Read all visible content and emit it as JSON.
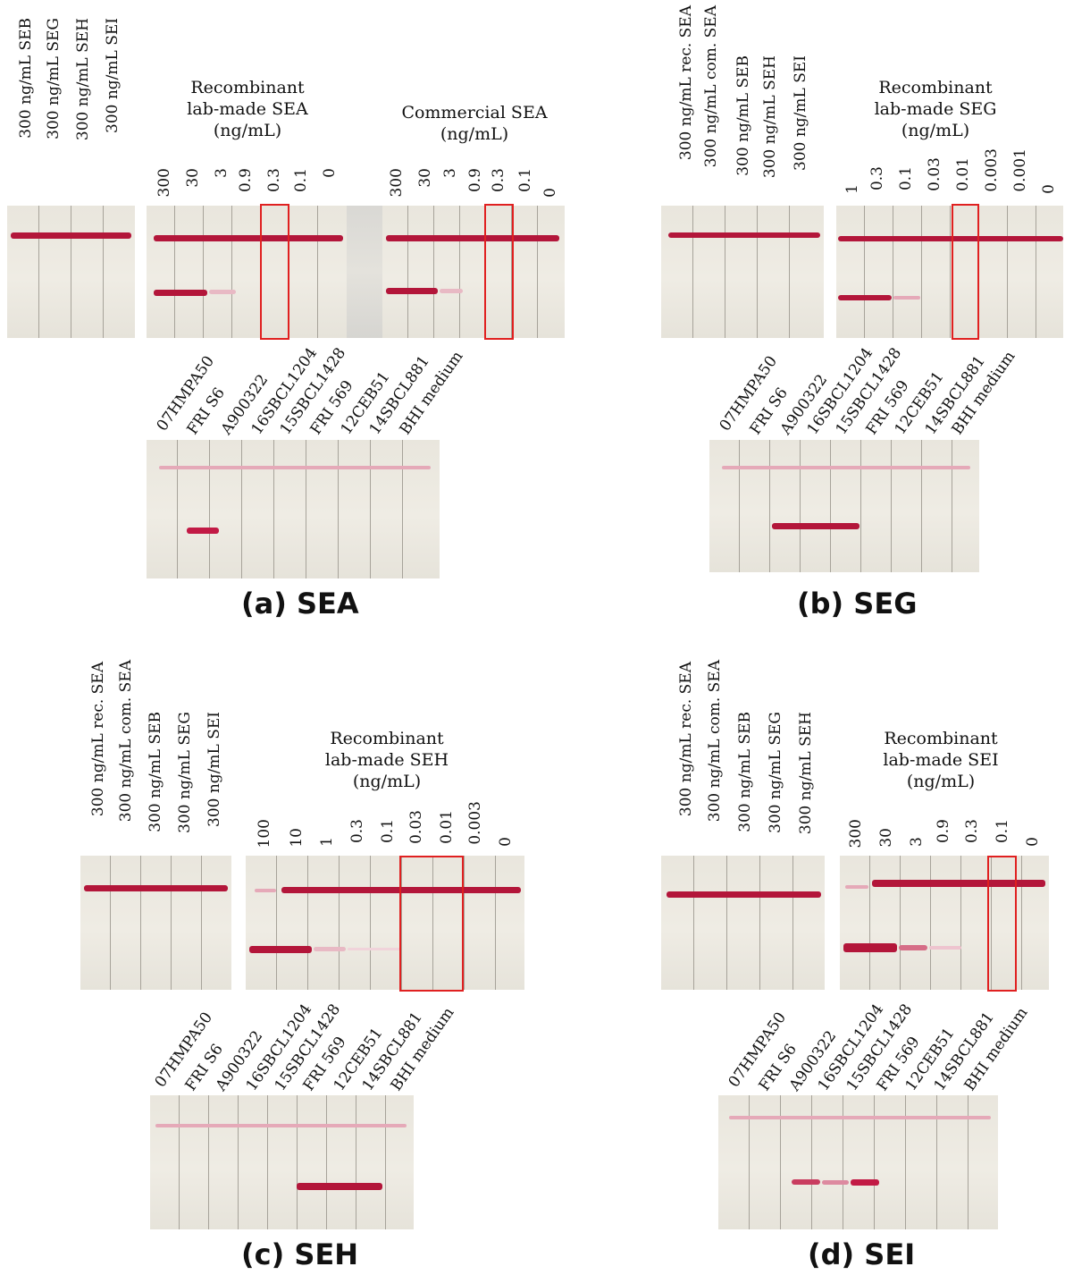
{
  "panels": {
    "a": {
      "caption": "(a) SEA",
      "cross_labels": [
        "300 ng/mL SEB",
        "300 ng/mL SEG",
        "300 ng/mL SEH",
        "300 ng/mL SEI"
      ],
      "rec_title": "Recombinant\nlab-made SEA\n(ng/mL)",
      "rec_conc": [
        "300",
        "30",
        "3",
        "0.9",
        "0.3",
        "0.1",
        "0"
      ],
      "com_title": "Commercial SEA\n(ng/mL)",
      "com_conc": [
        "300",
        "30",
        "3",
        "0.9",
        "0.3",
        "0.1",
        "0"
      ],
      "strains": [
        "07HMPA50",
        "FRI S6",
        "A900322",
        "16SBCL1204",
        "15SBCL1428",
        "FRI 569",
        "12CEB51",
        "14SBCL881",
        "BHI medium"
      ]
    },
    "b": {
      "caption": "(b) SEG",
      "cross_labels": [
        "300 ng/mL rec. SEA",
        "300 ng/mL com. SEA",
        "300 ng/mL SEB",
        "300 ng/mL SEH",
        "300 ng/mL SEI"
      ],
      "rec_title": "Recombinant\nlab-made SEG\n(ng/mL)",
      "rec_conc": [
        "1",
        "0.3",
        "0.1",
        "0.03",
        "0.01",
        "0.003",
        "0.001",
        "0"
      ],
      "strains": [
        "07HMPA50",
        "FRI S6",
        "A900322",
        "16SBCL1204",
        "15SBCL1428",
        "FRI 569",
        "12CEB51",
        "14SBCL881",
        "BHI medium"
      ]
    },
    "c": {
      "caption": "(c) SEH",
      "cross_labels": [
        "300 ng/mL rec. SEA",
        "300 ng/mL com. SEA",
        "300 ng/mL SEB",
        "300 ng/mL SEG",
        "300 ng/mL SEI"
      ],
      "rec_title": "Recombinant\nlab-made SEH\n(ng/mL)",
      "rec_conc": [
        "100",
        "10",
        "1",
        "0.3",
        "0.1",
        "0.03",
        "0.01",
        "0.003",
        "0"
      ],
      "strains": [
        "07HMPA50",
        "FRI S6",
        "A900322",
        "16SBCL1204",
        "15SBCL1428",
        "FRI 569",
        "12CEB51",
        "14SBCL881",
        "BHI medium"
      ]
    },
    "d": {
      "caption": "(d) SEI",
      "cross_labels": [
        "300 ng/mL rec. SEA",
        "300 ng/mL com. SEA",
        "300 ng/mL SEB",
        "300 ng/mL SEG",
        "300 ng/mL SEH"
      ],
      "rec_title": "Recombinant\nlab-made SEI\n(ng/mL)",
      "rec_conc": [
        "300",
        "30",
        "3",
        "0.9",
        "0.3",
        "0.1",
        "0"
      ],
      "strains": [
        "07HMPA50",
        "FRI S6",
        "A900322",
        "16SBCL1204",
        "15SBCL1428",
        "FRI 569",
        "12CEB51",
        "14SBCL881",
        "BHI medium"
      ]
    }
  },
  "colors": {
    "control_line": "#b3163a",
    "test_line": "#b3163a",
    "faint_line": "#e5a9b8",
    "highlight_box": "#e02020"
  }
}
